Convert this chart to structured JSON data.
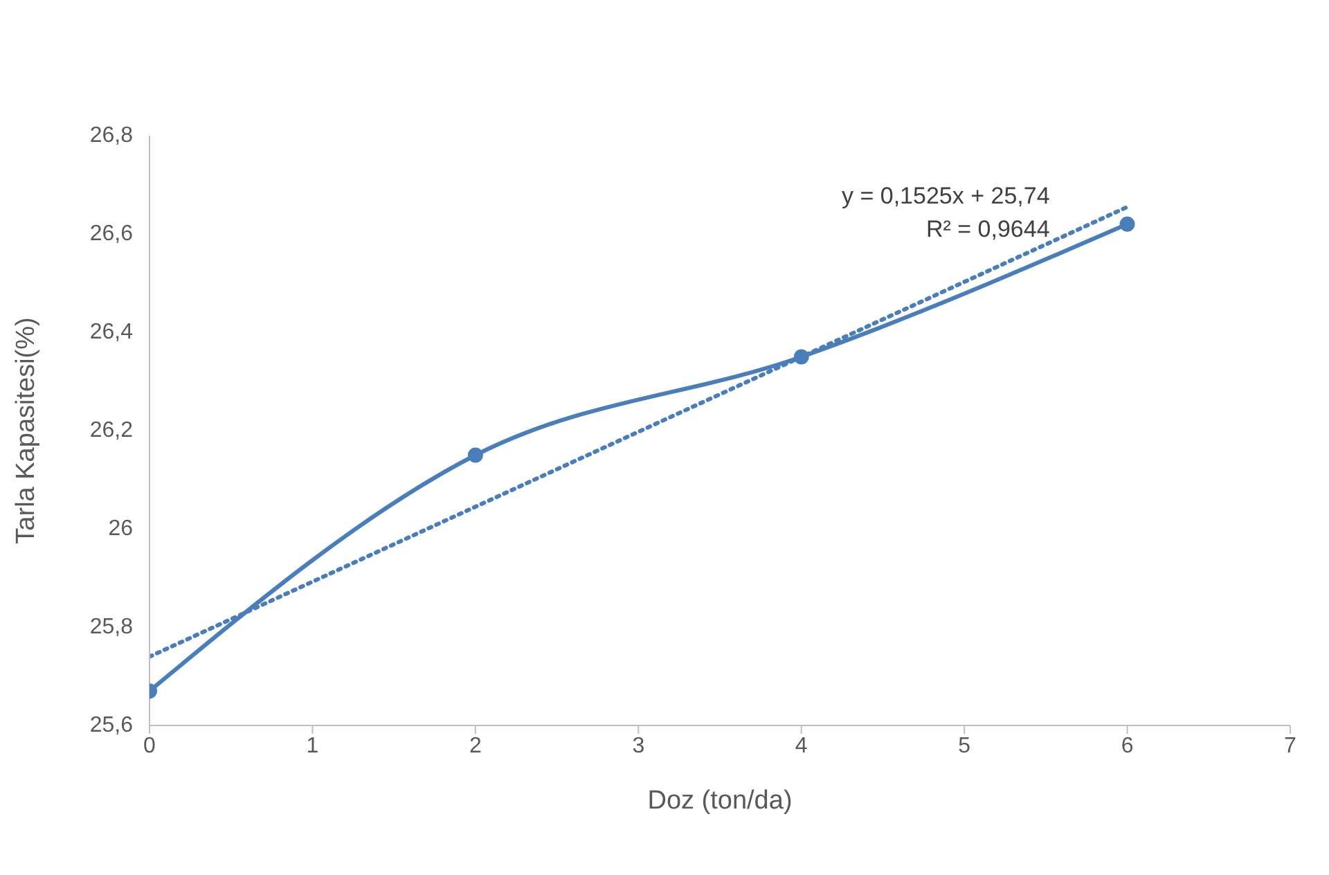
{
  "chart_data": {
    "type": "line",
    "xlabel": "Doz (ton/da)",
    "ylabel": "Tarla Kapasitesi(%)",
    "series": [
      {
        "color": "#4a7ebb",
        "x": [
          0,
          2,
          4,
          6
        ],
        "values": [
          25.67,
          26.15,
          26.35,
          26.62
        ],
        "line_style": "solid"
      },
      {
        "type": "line",
        "color": "#4a7ebb",
        "x": [
          0,
          6
        ],
        "values": [
          25.74,
          26.655
        ],
        "marker": "none",
        "line_style": "dotted"
      }
    ],
    "xlim": [
      0,
      7
    ],
    "xticks": [
      0,
      1,
      2,
      3,
      4,
      5,
      6,
      7
    ],
    "ylim": [
      25.6,
      26.8
    ],
    "yticks": [
      {
        "value": 25.6,
        "label": "25,6"
      },
      {
        "value": 25.8,
        "label": "25,8"
      },
      26,
      {
        "value": 26.2,
        "label": "26,2"
      },
      {
        "value": 26.4,
        "label": "26,4"
      },
      {
        "value": 26.6,
        "label": "26,6"
      },
      {
        "value": 26.8,
        "label": "26,8"
      }
    ],
    "annotations": [
      "y = 0,1525x + 25,74",
      "R² = 0,9644"
    ],
    "marker": "circle",
    "grid": false
  }
}
